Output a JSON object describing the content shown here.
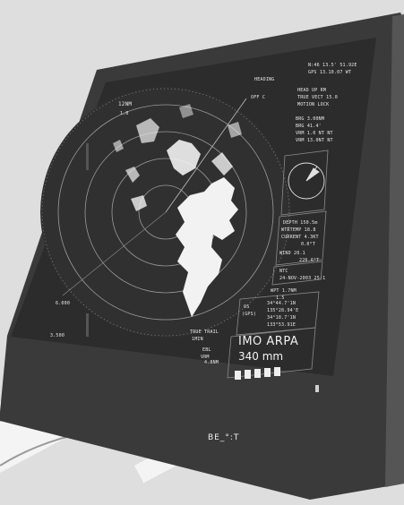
{
  "device": {
    "bezel_color": "#3a3a3a",
    "screen_color": "#2c2c2c",
    "echo_color": "#f2f2f2",
    "background_color": "#dedede"
  },
  "top_panel": {
    "header_left": "HEADING",
    "header_right_1": "N:46  13.5'  51.92E",
    "header_right_2": "GPS  13.10.07  WT",
    "mode_1": "HEAD UP   RM",
    "mode_2": "TRUE VECT   15.0",
    "mode_3": "MOTION  LOCK",
    "brg_rows": [
      "BRG  3.00NM",
      "BRG  41.4'  ",
      "VRM  1.0  NT  NT",
      "VRM  13.0NT  NT"
    ],
    "offset_label": "OFF C",
    "range_label_left": "12NM",
    "range_label_sub": "1.0"
  },
  "right_panel": {
    "depth": "DEPTH   150.5m",
    "wtr_temp": "WTRTEMP   18.8",
    "current": "CURRENT   4.3KT",
    "current_sub": "0.0°T",
    "wind": "WIND   20.1",
    "wind_sub": "226.6°T",
    "ntc": "NTC",
    "ntc_time": "24-NOV-2003  25:1",
    "wpt": "WPT   1.7NM",
    "wpt_sub": "1.5",
    "pos_label_1": "OS",
    "pos_label_2": "(GPS)",
    "lat": "34°44.7'1N",
    "lon": "135°28.94'E",
    "lat2": "34°18.7'1N",
    "lon2": "133°53.91E"
  },
  "scope": {
    "label_north": "TRUE TRAIL",
    "label_trail": "1MIN",
    "label_ebl": "EBL",
    "label_vrm": "VRM",
    "label_vrm_val": "4.8NM",
    "left_label_1": "6.000",
    "left_label_2": "3.500"
  },
  "arpa_box": {
    "title": "IMO ARPA",
    "range": "340 mm",
    "keys": [
      "",
      "",
      "",
      "",
      ""
    ]
  },
  "brand": {
    "logo": "BE_°:T"
  }
}
